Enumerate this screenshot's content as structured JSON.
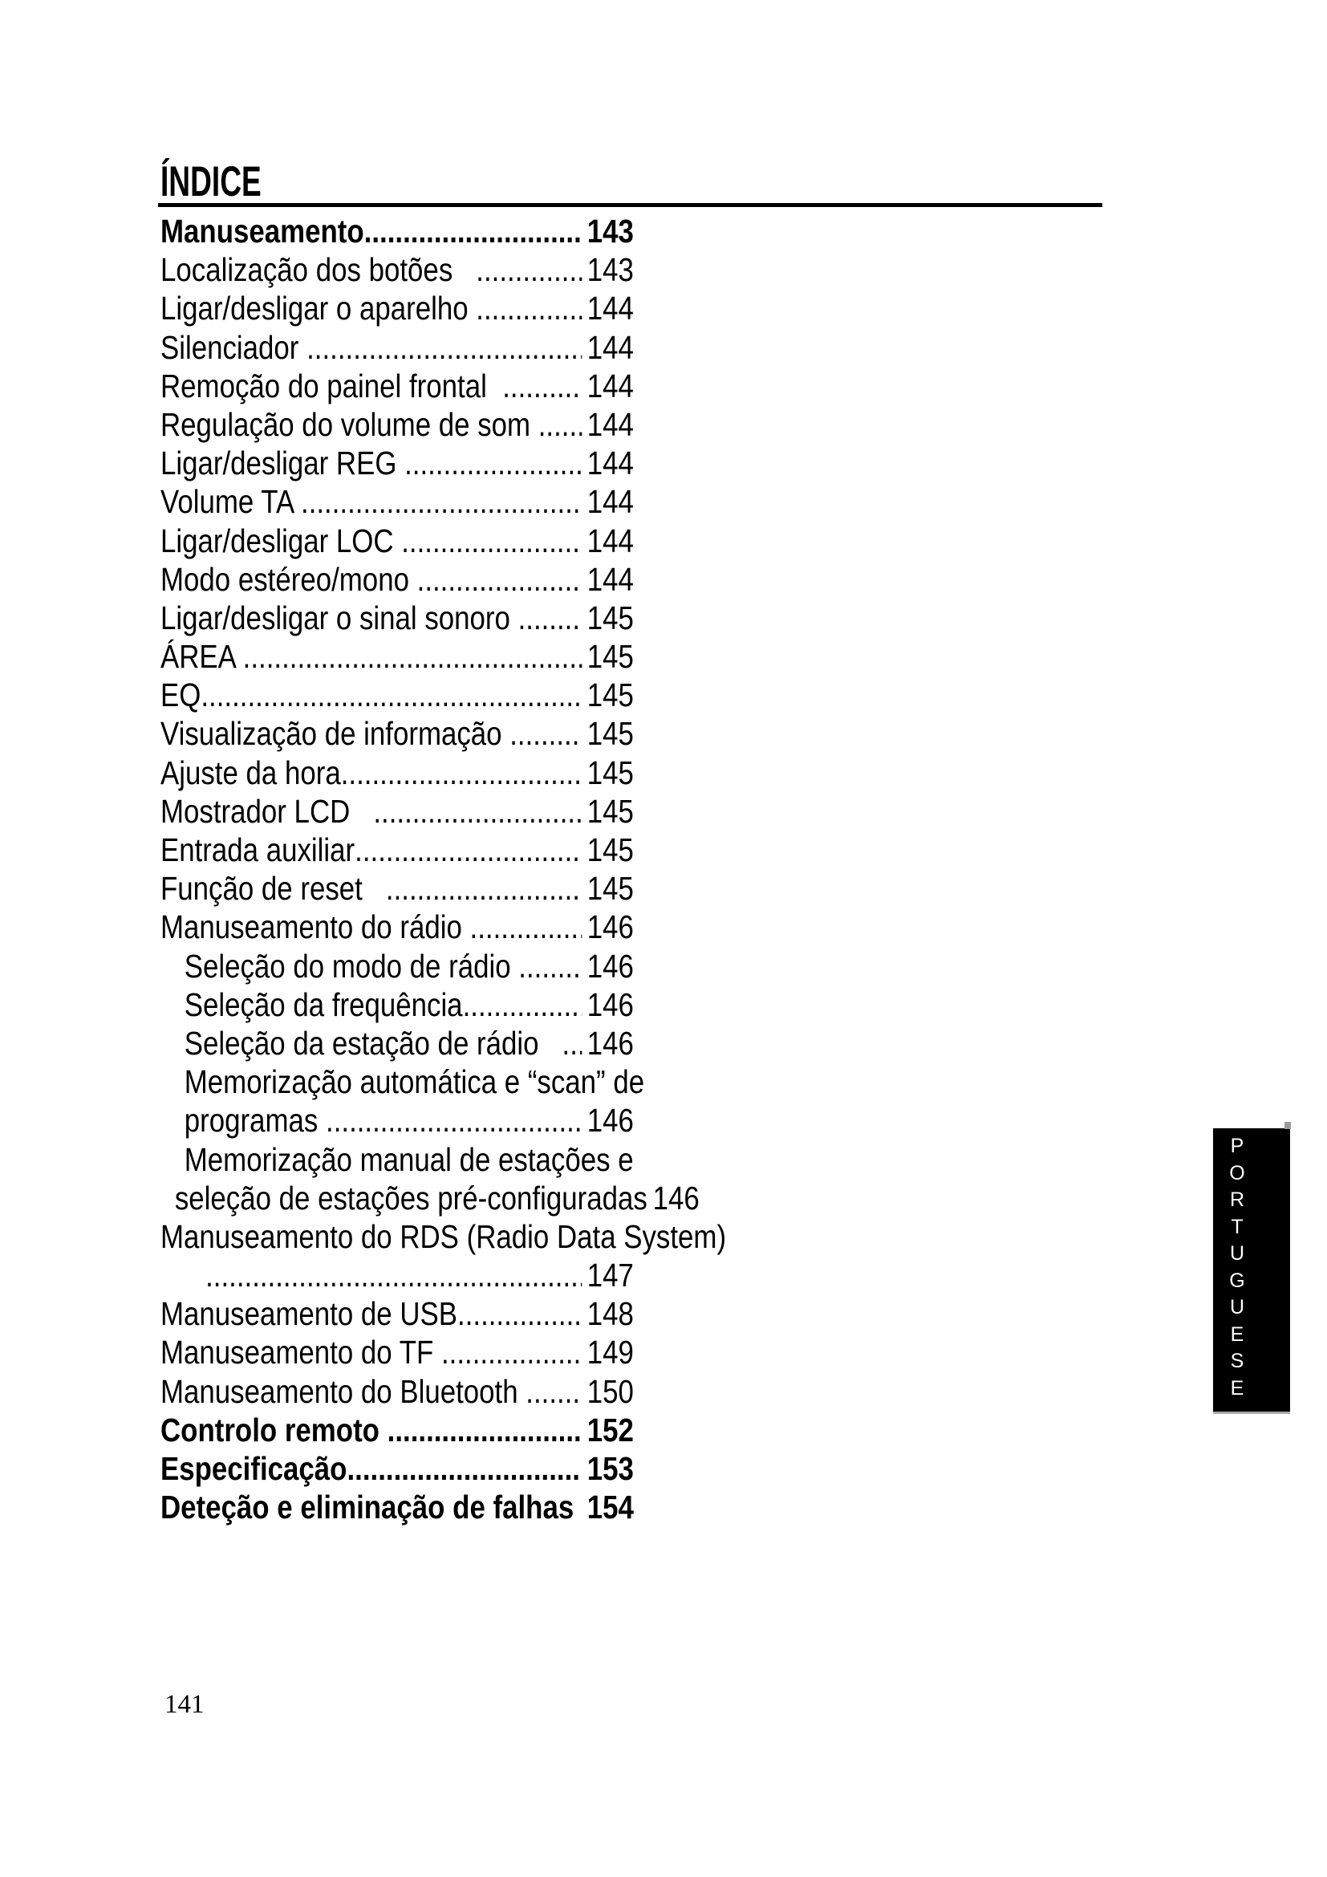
{
  "page": {
    "title": "ÍNDICE",
    "page_number": "141",
    "leader_dots": "....................................................................................................",
    "colors": {
      "background": "#ffffff",
      "text": "#000000",
      "sidebar_bg": "#000000",
      "sidebar_text": "#ffffff"
    }
  },
  "sidebar": {
    "text": "PORTUGUESE"
  },
  "toc": {
    "entries": [
      {
        "label": "Manuseamento",
        "page": "143",
        "bold": true,
        "leader": true,
        "indent": 0
      },
      {
        "label": "Localização dos botões   ",
        "page": "143",
        "bold": false,
        "leader": true,
        "indent": 0
      },
      {
        "label": "Ligar/desligar o aparelho ",
        "page": "144",
        "bold": false,
        "leader": true,
        "indent": 0
      },
      {
        "label": "Silenciador ",
        "page": "144",
        "bold": false,
        "leader": true,
        "indent": 0
      },
      {
        "label": "Remoção do painel frontal  ",
        "page": "144",
        "bold": false,
        "leader": true,
        "indent": 0
      },
      {
        "label": "Regulação do volume de som ",
        "page": "144",
        "bold": false,
        "leader": true,
        "indent": 0
      },
      {
        "label": "Ligar/desligar REG ",
        "page": "144",
        "bold": false,
        "leader": true,
        "indent": 0
      },
      {
        "label": "Volume TA ",
        "page": "144",
        "bold": false,
        "leader": true,
        "indent": 0
      },
      {
        "label": "Ligar/desligar LOC ",
        "page": "144",
        "bold": false,
        "leader": true,
        "indent": 0
      },
      {
        "label": "Modo estéreo/mono ",
        "page": "144",
        "bold": false,
        "leader": true,
        "indent": 0
      },
      {
        "label": "Ligar/desligar o sinal sonoro ",
        "page": "145",
        "bold": false,
        "leader": true,
        "indent": 0
      },
      {
        "label": "ÁREA ",
        "page": "145",
        "bold": false,
        "leader": true,
        "indent": 0
      },
      {
        "label": "EQ",
        "page": "145",
        "bold": false,
        "leader": true,
        "indent": 0
      },
      {
        "label": "Visualização de informação ",
        "page": "145",
        "bold": false,
        "leader": true,
        "indent": 0
      },
      {
        "label": "Ajuste da hora",
        "page": "145",
        "bold": false,
        "leader": true,
        "indent": 0
      },
      {
        "label": "Mostrador LCD   ",
        "page": "145",
        "bold": false,
        "leader": true,
        "indent": 0
      },
      {
        "label": "Entrada auxiliar",
        "page": "145",
        "bold": false,
        "leader": true,
        "indent": 0
      },
      {
        "label": "Função de reset   ",
        "page": "145",
        "bold": false,
        "leader": true,
        "indent": 0
      },
      {
        "label": "Manuseamento do rádio ",
        "page": "146",
        "bold": false,
        "leader": true,
        "indent": 0
      },
      {
        "label": "Seleção do modo de rádio ",
        "page": "146",
        "bold": false,
        "leader": true,
        "indent": 1
      },
      {
        "label": "Seleção da frequência",
        "page": "146",
        "bold": false,
        "leader": true,
        "indent": 1
      },
      {
        "label": "Seleção da estação de rádio   ",
        "page": "146",
        "bold": false,
        "leader": true,
        "indent": 1
      },
      {
        "label": "Memorização automática e “scan” de",
        "page": "",
        "bold": false,
        "leader": false,
        "indent": 1
      },
      {
        "label": "programas ",
        "page": "146",
        "bold": false,
        "leader": true,
        "indent": 1
      },
      {
        "label": "Memorização manual de estações e",
        "page": "",
        "bold": false,
        "leader": false,
        "indent": 1
      },
      {
        "label": "seleção de estações pré-configuradas",
        "page": "146",
        "bold": false,
        "leader": false,
        "indent": 2
      },
      {
        "label": "Manuseamento do RDS (Radio Data System)",
        "page": "",
        "bold": false,
        "leader": false,
        "indent": 0
      },
      {
        "label": "",
        "page": "147",
        "bold": false,
        "leader": true,
        "indent": 3
      },
      {
        "label": "Manuseamento de USB",
        "page": "148",
        "bold": false,
        "leader": true,
        "indent": 0
      },
      {
        "label": "Manuseamento do TF ",
        "page": "149",
        "bold": false,
        "leader": true,
        "indent": 0
      },
      {
        "label": "Manuseamento do Bluetooth ",
        "page": "150",
        "bold": false,
        "leader": true,
        "indent": 0
      },
      {
        "label": "Controlo remoto ",
        "page": "152",
        "bold": true,
        "leader": true,
        "indent": 0
      },
      {
        "label": "Especificação",
        "page": "153",
        "bold": true,
        "leader": true,
        "indent": 0
      },
      {
        "label": "Deteção e eliminação de falhas ",
        "page": "154",
        "bold": true,
        "leader": true,
        "indent": 0
      }
    ]
  }
}
